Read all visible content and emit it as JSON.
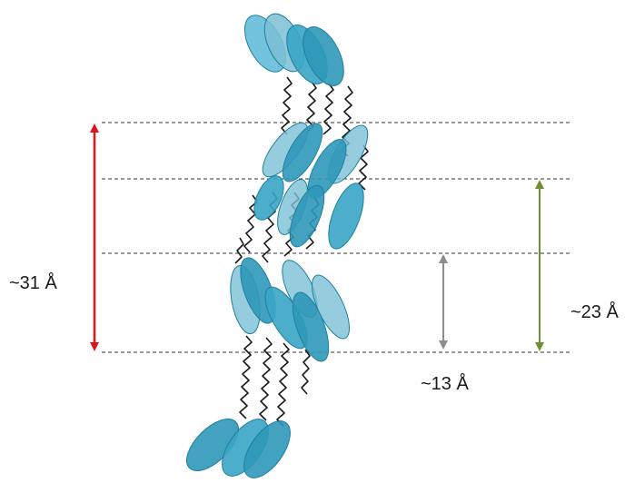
{
  "dimensions": {
    "bilayer_total": {
      "label": "~31 Å",
      "color": "#d9151f"
    },
    "inner_span": {
      "label": "~23 Å",
      "color": "#6f8f32"
    },
    "core_span": {
      "label": "~13 Å",
      "color": "#8c8c8c"
    }
  },
  "colors": {
    "molecule_dark": "#2e98b8",
    "molecule_mid": "#3aa5c7",
    "molecule_light": "#7cc0d6",
    "chain": "#1a1a1a",
    "guide_line": "#333333"
  }
}
